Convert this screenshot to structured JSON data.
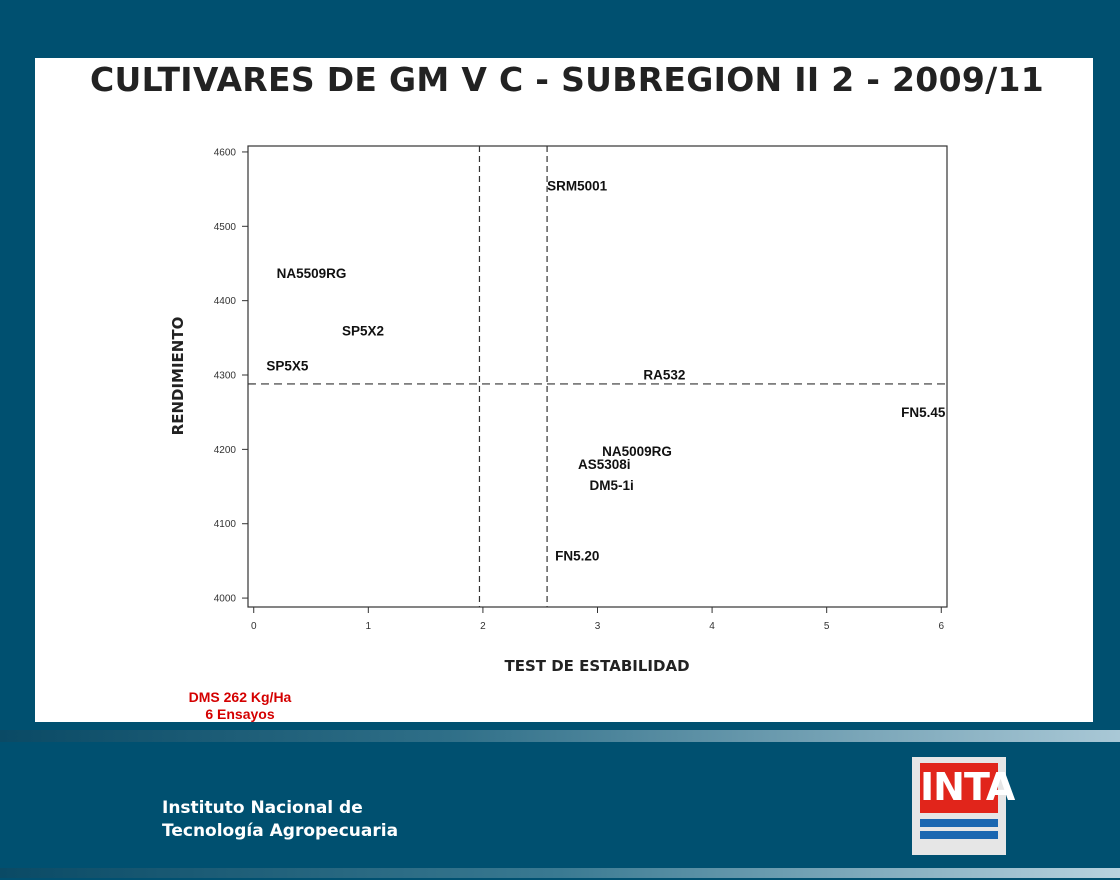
{
  "slide": {
    "title": "CULTIVARES DE GM V C - SUBREGION II 2 - 2009/11",
    "dms_line1": "DMS 262 Kg/Ha",
    "dms_line2": "6 Ensayos",
    "institution_line1": "Instituto Nacional de",
    "institution_line2": "Tecnología Agropecuaria",
    "logo_text": "INTA",
    "colors": {
      "background": "#005070",
      "dms_text": "#d40000",
      "logo_red": "#e1251b",
      "logo_blue": "#1b67b1"
    }
  },
  "chart_data": {
    "type": "scatter",
    "title": "CULTIVARES DE GM V C - SUBREGION II 2 - 2009/11",
    "xlabel": "TEST DE ESTABILIDAD",
    "ylabel": "RENDIMIENTO",
    "xlim": [
      0,
      6
    ],
    "ylim": [
      4000,
      4600
    ],
    "xticks": [
      "0",
      "1",
      "2",
      "3",
      "4",
      "5",
      "6"
    ],
    "yticks": [
      "4000",
      "4100",
      "4200",
      "4300",
      "4400",
      "4500",
      "4600"
    ],
    "grid": false,
    "reference_lines": {
      "vertical_x": [
        1.97,
        2.56
      ],
      "horizontal_y": [
        4288
      ]
    },
    "points": [
      {
        "label": "SRM5001",
        "x": 2.56,
        "y": 4555
      },
      {
        "label": "NA5509RG",
        "x": 0.2,
        "y": 4437
      },
      {
        "label": "SP5X2",
        "x": 0.77,
        "y": 4360
      },
      {
        "label": "SP5X5",
        "x": 0.11,
        "y": 4313
      },
      {
        "label": "RA532",
        "x": 3.4,
        "y": 4301
      },
      {
        "label": "FN5.45",
        "x": 5.65,
        "y": 4250
      },
      {
        "label": "NA5009RG",
        "x": 3.04,
        "y": 4198
      },
      {
        "label": "AS5308i",
        "x": 2.83,
        "y": 4180
      },
      {
        "label": "DM5-1i",
        "x": 2.93,
        "y": 4152
      },
      {
        "label": "FN5.20",
        "x": 2.63,
        "y": 4057
      }
    ]
  }
}
